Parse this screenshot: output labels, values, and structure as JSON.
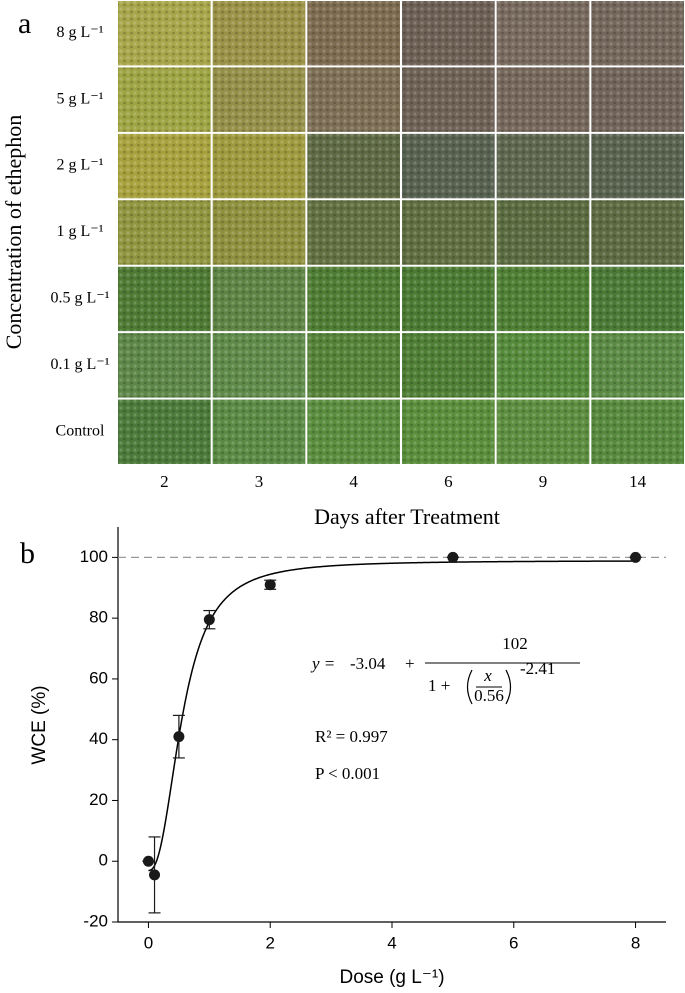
{
  "panel_a": {
    "label": "a",
    "y_title": "Concentration of ethephon",
    "x_title": "Days after Treatment",
    "rows": [
      "8 g L⁻¹",
      "5 g L⁻¹",
      "2 g L⁻¹",
      "1 g L⁻¹",
      "0.5 g L⁻¹",
      "0.1 g L⁻¹",
      "Control"
    ],
    "columns": [
      "2",
      "3",
      "4",
      "6",
      "9",
      "14"
    ]
  },
  "chart_data": {
    "type": "scatter",
    "panel_label": "b",
    "x_label": "Dose (g L⁻¹)",
    "y_label": "WCE (%)",
    "series": [
      {
        "x": [
          0,
          0.1,
          0.5,
          1,
          2,
          5,
          8
        ],
        "values": [
          0,
          -4.5,
          41,
          79.5,
          91,
          100,
          100
        ],
        "errors": [
          0,
          12.5,
          7,
          3,
          1.5,
          0,
          0
        ],
        "color": "#1a1a1a"
      }
    ],
    "xlim": [
      -0.5,
      8.5
    ],
    "ylim": [
      -20,
      110
    ],
    "xticks": [
      0,
      2,
      4,
      6,
      8
    ],
    "yticks": [
      -20,
      0,
      20,
      40,
      60,
      80,
      100
    ],
    "reference_line": 100,
    "fit": {
      "lhs": "y =",
      "y0": -3.04,
      "plus": "+",
      "a": 102,
      "denom": "1 +",
      "var": "x",
      "x0": 0.56,
      "b": -2.41,
      "color": "#000000"
    },
    "r_squared": "R² = 0.997",
    "p_value": "P < 0.001"
  }
}
